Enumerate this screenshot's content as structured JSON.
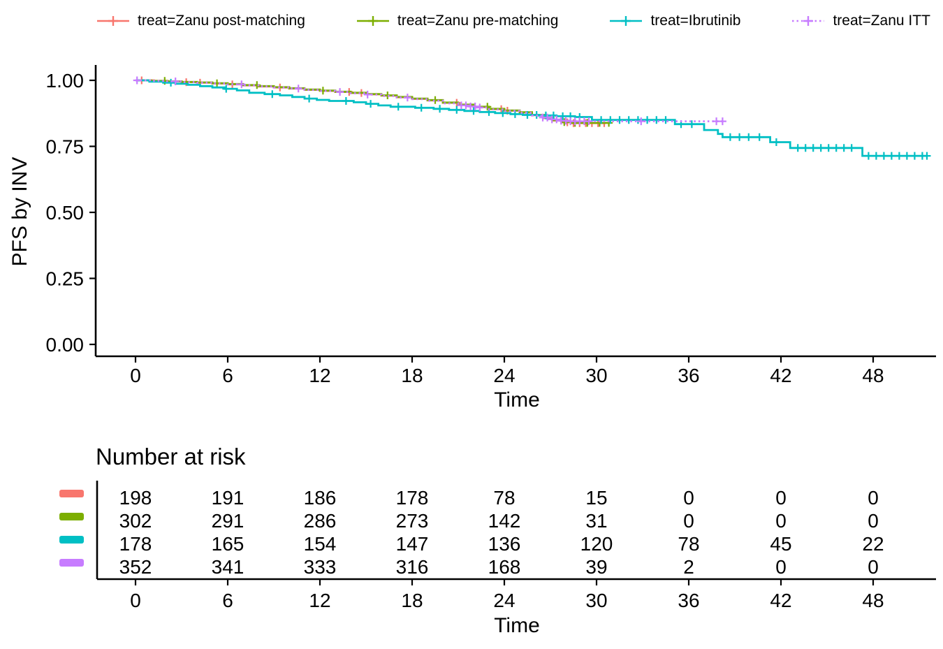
{
  "legend": {
    "items": [
      {
        "label": "treat=Zanu post-matching",
        "color": "#F8766D",
        "linetype": "solid"
      },
      {
        "label": "treat=Zanu pre-matching",
        "color": "#7CAE00",
        "linetype": "solid"
      },
      {
        "label": "treat=Ibrutinib",
        "color": "#00BFC4",
        "linetype": "solid"
      },
      {
        "label": "treat=Zanu ITT",
        "color": "#C77CFF",
        "linetype": "dotted"
      }
    ]
  },
  "chart_data": {
    "type": "line",
    "subtype": "kaplan-meier-step",
    "title": "",
    "xlabel": "Time",
    "ylabel": "PFS by INV",
    "xlim": [
      0,
      52
    ],
    "ylim": [
      0,
      1.0
    ],
    "xticks": [
      0,
      6,
      12,
      18,
      24,
      30,
      36,
      42,
      48
    ],
    "yticks": [
      0.0,
      0.25,
      0.5,
      0.75,
      1.0
    ],
    "ytick_labels": [
      "0.00",
      "0.25",
      "0.50",
      "0.75",
      "1.00"
    ],
    "grid": false,
    "legend_position": "top",
    "series": [
      {
        "name": "treat=Zanu post-matching",
        "color": "#F8766D",
        "linetype": "solid",
        "points": [
          [
            0,
            1.0
          ],
          [
            1.2,
            0.998
          ],
          [
            2.1,
            0.996
          ],
          [
            3,
            0.993
          ],
          [
            4,
            0.991
          ],
          [
            5,
            0.988
          ],
          [
            6,
            0.985
          ],
          [
            7,
            0.981
          ],
          [
            8,
            0.977
          ],
          [
            9,
            0.973
          ],
          [
            10,
            0.969
          ],
          [
            11,
            0.964
          ],
          [
            12,
            0.96
          ],
          [
            13,
            0.956
          ],
          [
            14,
            0.952
          ],
          [
            15,
            0.947
          ],
          [
            16,
            0.942
          ],
          [
            17,
            0.936
          ],
          [
            18,
            0.93
          ],
          [
            19,
            0.924
          ],
          [
            20,
            0.915
          ],
          [
            21,
            0.907
          ],
          [
            22,
            0.899
          ],
          [
            23,
            0.891
          ],
          [
            24,
            0.885
          ],
          [
            25,
            0.878
          ],
          [
            25.8,
            0.868
          ],
          [
            26.6,
            0.857
          ],
          [
            27.2,
            0.848
          ],
          [
            27.8,
            0.841
          ],
          [
            28.4,
            0.838
          ],
          [
            30.6,
            0.838
          ]
        ],
        "censors": [
          0.4,
          3.3,
          4.2,
          6.3,
          9.4,
          13.9,
          14.7,
          20.9,
          23.8,
          24.2,
          27.7,
          28.1,
          28.5,
          28.9,
          29.3,
          29.7,
          30.1,
          30.5
        ]
      },
      {
        "name": "treat=Zanu pre-matching",
        "color": "#7CAE00",
        "linetype": "solid",
        "points": [
          [
            0,
            1.0
          ],
          [
            1,
            0.998
          ],
          [
            2,
            0.996
          ],
          [
            3,
            0.994
          ],
          [
            4,
            0.992
          ],
          [
            5,
            0.989
          ],
          [
            6,
            0.986
          ],
          [
            7,
            0.982
          ],
          [
            8,
            0.978
          ],
          [
            9,
            0.974
          ],
          [
            10,
            0.97
          ],
          [
            11,
            0.965
          ],
          [
            12,
            0.961
          ],
          [
            13,
            0.957
          ],
          [
            14,
            0.953
          ],
          [
            15,
            0.948
          ],
          [
            16,
            0.943
          ],
          [
            17,
            0.937
          ],
          [
            18,
            0.931
          ],
          [
            19,
            0.925
          ],
          [
            20,
            0.916
          ],
          [
            21,
            0.908
          ],
          [
            22,
            0.9
          ],
          [
            23,
            0.892
          ],
          [
            24,
            0.886
          ],
          [
            25,
            0.879
          ],
          [
            25.8,
            0.869
          ],
          [
            26.6,
            0.858
          ],
          [
            27.2,
            0.849
          ],
          [
            27.8,
            0.842
          ],
          [
            28.4,
            0.839
          ],
          [
            30.9,
            0.839
          ]
        ],
        "censors": [
          1.9,
          5.3,
          7.9,
          12.2,
          16.4,
          19.5,
          22.9,
          27.9,
          28.6,
          29.4,
          30.2,
          30.8
        ]
      },
      {
        "name": "treat=Ibrutinib",
        "color": "#00BFC4",
        "linetype": "solid",
        "points": [
          [
            0,
            1.0
          ],
          [
            0.9,
            0.995
          ],
          [
            1.8,
            0.991
          ],
          [
            2.6,
            0.987
          ],
          [
            3.4,
            0.983
          ],
          [
            4.2,
            0.978
          ],
          [
            5,
            0.973
          ],
          [
            5.8,
            0.968
          ],
          [
            6.6,
            0.962
          ],
          [
            7.4,
            0.953
          ],
          [
            8.4,
            0.948
          ],
          [
            9.4,
            0.943
          ],
          [
            10.2,
            0.937
          ],
          [
            11,
            0.931
          ],
          [
            11.8,
            0.926
          ],
          [
            12.6,
            0.922
          ],
          [
            14.2,
            0.917
          ],
          [
            15,
            0.911
          ],
          [
            15.8,
            0.905
          ],
          [
            16.6,
            0.9
          ],
          [
            18.2,
            0.896
          ],
          [
            19.4,
            0.892
          ],
          [
            20.4,
            0.888
          ],
          [
            21.4,
            0.884
          ],
          [
            22.4,
            0.88
          ],
          [
            23.4,
            0.876
          ],
          [
            24.4,
            0.872
          ],
          [
            25.2,
            0.869
          ],
          [
            26.2,
            0.867
          ],
          [
            27.4,
            0.864
          ],
          [
            28.6,
            0.861
          ],
          [
            29.7,
            0.85
          ],
          [
            35.1,
            0.834
          ],
          [
            37,
            0.812
          ],
          [
            37.9,
            0.797
          ],
          [
            38.2,
            0.785
          ],
          [
            41.3,
            0.766
          ],
          [
            42.6,
            0.744
          ],
          [
            47.3,
            0.714
          ],
          [
            51.5,
            0.714
          ]
        ],
        "censors": [
          2.3,
          5.9,
          8.9,
          11.3,
          13.7,
          15.3,
          17.1,
          18.6,
          19.8,
          20.9,
          22,
          23,
          23.9,
          24.7,
          25.5,
          26.1,
          26.7,
          27.2,
          27.8,
          28.3,
          28.9,
          30.3,
          30.9,
          31.5,
          32.1,
          32.7,
          33.3,
          33.9,
          34.5,
          35.5,
          36.2,
          38.7,
          39.3,
          39.9,
          40.6,
          41.7,
          43.1,
          43.6,
          44.1,
          44.6,
          45.1,
          45.6,
          46.1,
          46.6,
          47.7,
          48.2,
          48.7,
          49.2,
          49.7,
          50.2,
          50.7,
          51.2,
          51.5
        ]
      },
      {
        "name": "treat=Zanu ITT",
        "color": "#C77CFF",
        "linetype": "dotted",
        "points": [
          [
            0,
            1.0
          ],
          [
            1.1,
            0.998
          ],
          [
            2,
            0.996
          ],
          [
            3,
            0.993
          ],
          [
            4,
            0.991
          ],
          [
            5,
            0.988
          ],
          [
            6,
            0.985
          ],
          [
            7,
            0.981
          ],
          [
            8,
            0.977
          ],
          [
            9,
            0.973
          ],
          [
            10,
            0.969
          ],
          [
            11,
            0.964
          ],
          [
            12,
            0.96
          ],
          [
            13,
            0.956
          ],
          [
            14,
            0.951
          ],
          [
            15,
            0.946
          ],
          [
            16,
            0.941
          ],
          [
            17,
            0.935
          ],
          [
            18,
            0.929
          ],
          [
            19,
            0.923
          ],
          [
            20,
            0.913
          ],
          [
            21,
            0.905
          ],
          [
            21.6,
            0.901
          ],
          [
            22.2,
            0.897
          ],
          [
            23,
            0.89
          ],
          [
            24,
            0.884
          ],
          [
            25,
            0.877
          ],
          [
            25.8,
            0.867
          ],
          [
            26.4,
            0.859
          ],
          [
            27,
            0.852
          ],
          [
            27.6,
            0.847
          ],
          [
            28.2,
            0.845
          ],
          [
            38.3,
            0.845
          ]
        ],
        "censors": [
          0.1,
          2.6,
          6.9,
          10.6,
          13.3,
          15.1,
          17.7,
          21.2,
          21.5,
          21.8,
          22.1,
          22.4,
          26.5,
          26.8,
          27.1,
          27.4,
          27.7,
          28,
          28.3,
          28.6,
          28.9,
          29.2,
          29.5,
          32.9,
          37.8,
          38.2
        ]
      }
    ]
  },
  "risk_table": {
    "title": "Number at risk",
    "xlabel": "Time",
    "xticks": [
      0,
      6,
      12,
      18,
      24,
      30,
      36,
      42,
      48
    ],
    "rows": [
      {
        "name": "treat=Zanu post-matching",
        "color": "#F8766D",
        "values": [
          198,
          191,
          186,
          178,
          78,
          15,
          0,
          0,
          0
        ]
      },
      {
        "name": "treat=Zanu pre-matching",
        "color": "#7CAE00",
        "values": [
          302,
          291,
          286,
          273,
          142,
          31,
          0,
          0,
          0
        ]
      },
      {
        "name": "treat=Ibrutinib",
        "color": "#00BFC4",
        "values": [
          178,
          165,
          154,
          147,
          136,
          120,
          78,
          45,
          22
        ]
      },
      {
        "name": "treat=Zanu ITT",
        "color": "#C77CFF",
        "values": [
          352,
          341,
          333,
          316,
          168,
          39,
          2,
          0,
          0
        ]
      }
    ]
  }
}
